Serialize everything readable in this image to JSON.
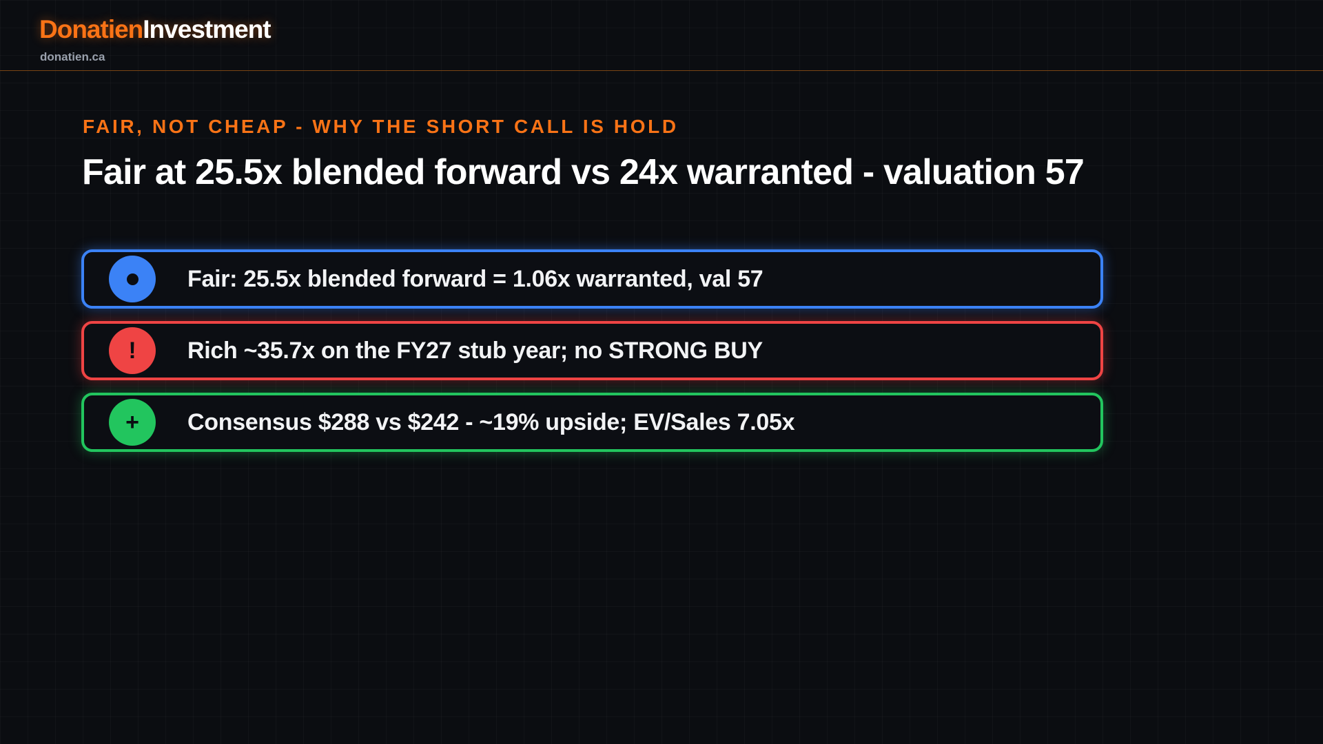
{
  "header": {
    "brand_primary": "Donatien",
    "brand_secondary": "Investment",
    "domain": "donatien.ca"
  },
  "slide": {
    "eyebrow": "FAIR, NOT CHEAP - WHY THE SHORT CALL IS HOLD",
    "title": "Fair at 25.5x blended forward vs 24x warranted - valuation 57",
    "points": [
      {
        "icon": "dot-icon",
        "glyph": "",
        "text": "Fair: 25.5x blended forward = 1.06x warranted, val 57",
        "color": "#3b82f6"
      },
      {
        "icon": "exclamation-icon",
        "glyph": "!",
        "text": "Rich ~35.7x on the FY27 stub year; no STRONG BUY",
        "color": "#ef4444"
      },
      {
        "icon": "plus-icon",
        "glyph": "+",
        "text": "Consensus $288 vs $242 - ~19% upside; EV/Sales 7.05x",
        "color": "#22c55e"
      }
    ]
  },
  "colors": {
    "accent": "#f97316",
    "background": "#0b0d11"
  }
}
